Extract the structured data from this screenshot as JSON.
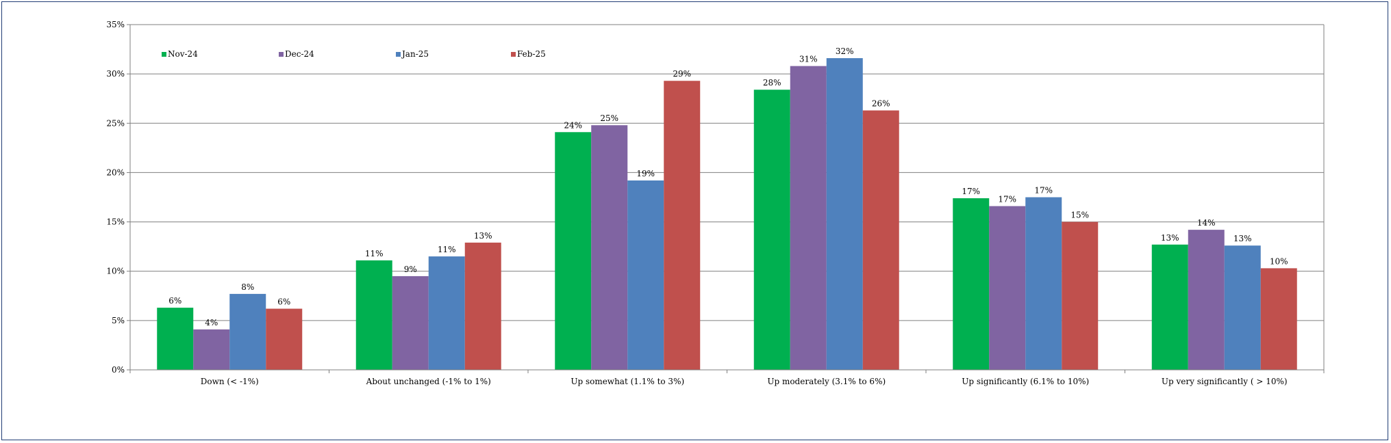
{
  "chart_data": {
    "type": "bar",
    "categories": [
      "Down (< -1%)",
      "About unchanged (-1% to 1%)",
      "Up somewhat (1.1% to 3%)",
      "Up moderately (3.1% to 6%)",
      "Up significantly (6.1% to 10%)",
      "Up very significantly ( > 10%)"
    ],
    "series": [
      {
        "name": "Nov-24",
        "color": "#00b050",
        "values": [
          6.3,
          11.1,
          24.1,
          28.4,
          17.4,
          12.7
        ],
        "labels": [
          "6%",
          "11%",
          "24%",
          "28%",
          "17%",
          "13%"
        ]
      },
      {
        "name": "Dec-24",
        "color": "#8064a2",
        "values": [
          4.1,
          9.5,
          24.8,
          30.8,
          16.6,
          14.2
        ],
        "labels": [
          "4%",
          "9%",
          "25%",
          "31%",
          "17%",
          "14%"
        ]
      },
      {
        "name": "Jan-25",
        "color": "#4f81bd",
        "values": [
          7.7,
          11.5,
          19.2,
          31.6,
          17.5,
          12.6
        ],
        "labels": [
          "8%",
          "11%",
          "19%",
          "32%",
          "17%",
          "13%"
        ]
      },
      {
        "name": "Feb-25",
        "color": "#c0504d",
        "values": [
          6.2,
          12.9,
          29.3,
          26.3,
          15.0,
          10.3
        ],
        "labels": [
          "6%",
          "13%",
          "29%",
          "26%",
          "15%",
          "10%"
        ]
      }
    ],
    "ylim": [
      0,
      35
    ],
    "yticks": [
      "0%",
      "5%",
      "10%",
      "15%",
      "20%",
      "25%",
      "30%",
      "35%"
    ],
    "ytick_values": [
      0,
      5,
      10,
      15,
      20,
      25,
      30,
      35
    ],
    "grid": true,
    "legend": "top-left",
    "xlabel": "",
    "ylabel": "",
    "title": ""
  }
}
